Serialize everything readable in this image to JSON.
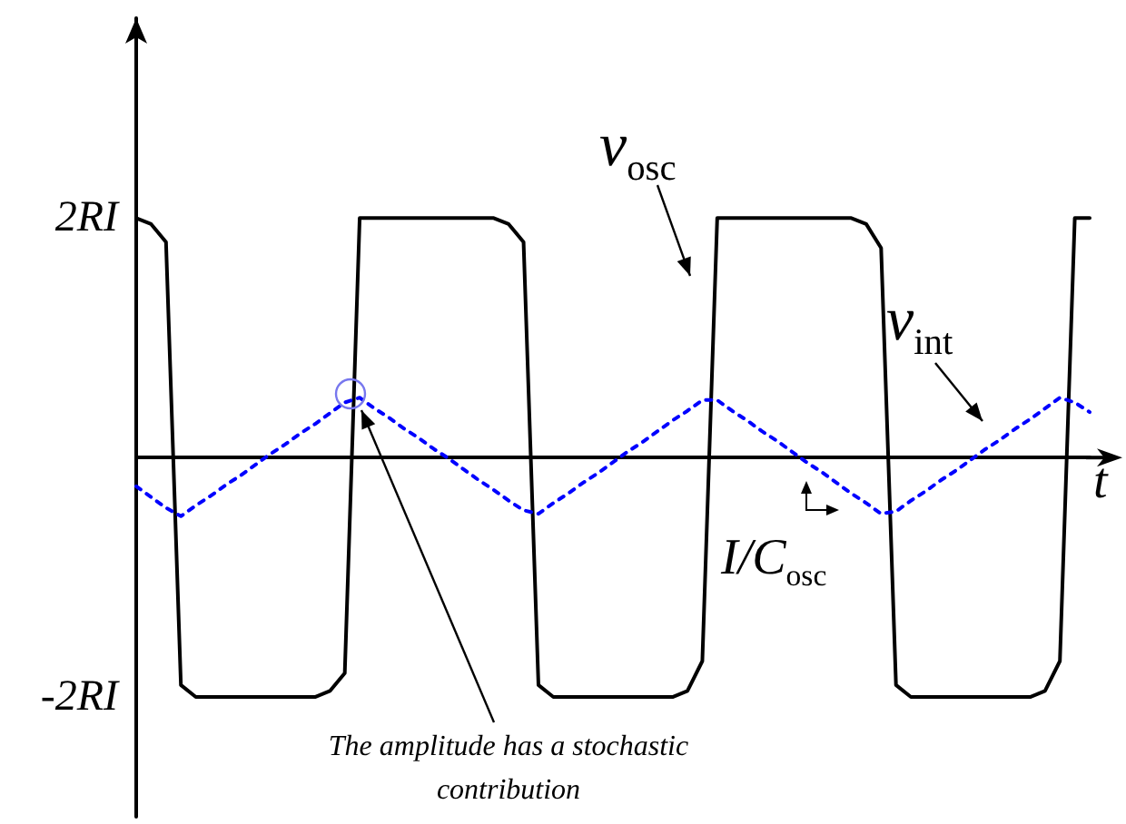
{
  "chart_data": {
    "type": "line",
    "xlabel": "t",
    "categories": [
      null,
      null,
      null,
      null,
      null,
      null,
      null,
      null,
      null,
      null,
      null,
      null,
      null,
      null,
      null,
      null,
      null,
      null,
      null,
      null,
      null,
      null,
      null,
      null,
      null,
      null,
      null,
      null,
      null,
      null,
      null,
      null,
      null,
      null,
      null,
      null,
      null,
      null,
      null,
      null,
      null,
      null,
      null,
      null,
      null,
      null,
      null,
      null,
      null,
      null,
      null,
      null,
      null,
      null,
      null,
      null,
      null,
      null,
      null,
      null,
      null,
      null,
      null,
      null,
      null
    ],
    "series": [
      {
        "name": "v$_{osc}$",
        "color": "#000000",
        "line_style": "solid",
        "values": [
          2,
          1.95,
          1.8,
          -1.9,
          -2,
          -2,
          -2,
          -2,
          -2,
          -2,
          -2,
          -2,
          -2,
          -1.95,
          -1.8,
          2,
          2,
          2,
          2,
          2,
          2,
          2,
          2,
          2,
          2,
          1.95,
          1.8,
          -1.9,
          -2,
          -2,
          -2,
          -2,
          -2,
          -2,
          -2,
          -2,
          -2,
          -1.95,
          -1.7,
          2,
          2,
          2,
          2,
          2,
          2,
          2,
          2,
          2,
          2,
          1.95,
          1.75,
          -1.9,
          -2,
          -2,
          -2,
          -2,
          -2,
          -2,
          -2,
          -2,
          -2,
          -1.95,
          -1.7,
          2,
          2
        ]
      },
      {
        "name": "v$_{int}$",
        "color": "#0000ff",
        "line_style": "dotted",
        "values": [
          -0.24,
          -0.33,
          -0.42,
          -0.49,
          -0.4,
          -0.32,
          -0.23,
          -0.15,
          -0.06,
          0.03,
          0.11,
          0.2,
          0.28,
          0.37,
          0.46,
          0.5,
          0.41,
          0.33,
          0.24,
          0.16,
          0.07,
          -0.01,
          -0.1,
          -0.19,
          -0.27,
          -0.36,
          -0.44,
          -0.47,
          -0.38,
          -0.3,
          -0.21,
          -0.13,
          -0.04,
          0.05,
          0.13,
          0.22,
          0.31,
          0.39,
          0.48,
          0.48,
          0.39,
          0.31,
          0.22,
          0.14,
          0.05,
          -0.04,
          -0.12,
          -0.21,
          -0.3,
          -0.38,
          -0.47,
          -0.45,
          -0.36,
          -0.28,
          -0.19,
          -0.11,
          -0.02,
          0.07,
          0.15,
          0.24,
          0.32,
          0.41,
          0.5,
          0.46,
          0.38
        ]
      }
    ],
    "ylim": [
      -3,
      3.67
    ],
    "yticks": [
      {
        "value": 2,
        "label": "2RI"
      },
      {
        "value": -2,
        "label": "-2RI"
      }
    ],
    "tick_labels": "y",
    "grid": false,
    "annotations": [
      "I/C$_{osc}$",
      "The amplitude has a stochastic contribution"
    ]
  }
}
